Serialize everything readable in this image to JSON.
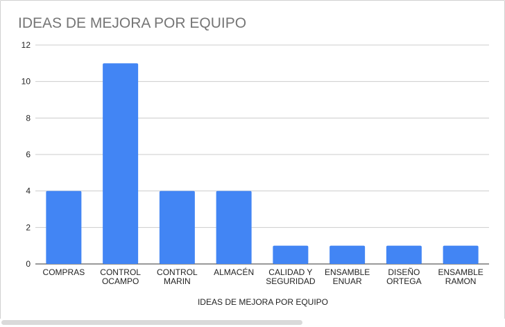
{
  "chart_data": {
    "type": "bar",
    "title": "IDEAS DE MEJORA POR EQUIPO",
    "xlabel": "IDEAS DE MEJORA POR EQUIPO",
    "ylabel": "",
    "ylim": [
      0,
      12
    ],
    "yticks": [
      "0",
      "2",
      "4",
      "6",
      "8",
      "10",
      "12"
    ],
    "grid": true,
    "legend": "none",
    "bar_color": "#4285f4",
    "categories": [
      [
        "COMPRAS"
      ],
      [
        "CONTROL",
        "OCAMPO"
      ],
      [
        "CONTROL",
        "MARIN"
      ],
      [
        "ALMACÉN"
      ],
      [
        "CALIDAD Y",
        "SEGURIDAD"
      ],
      [
        "ENSAMBLE",
        "ENUAR"
      ],
      [
        "DISEÑO",
        "ORTEGA"
      ],
      [
        "ENSAMBLE",
        "RAMON"
      ]
    ],
    "values": [
      4,
      11,
      4,
      4,
      1,
      1,
      1,
      1
    ]
  }
}
